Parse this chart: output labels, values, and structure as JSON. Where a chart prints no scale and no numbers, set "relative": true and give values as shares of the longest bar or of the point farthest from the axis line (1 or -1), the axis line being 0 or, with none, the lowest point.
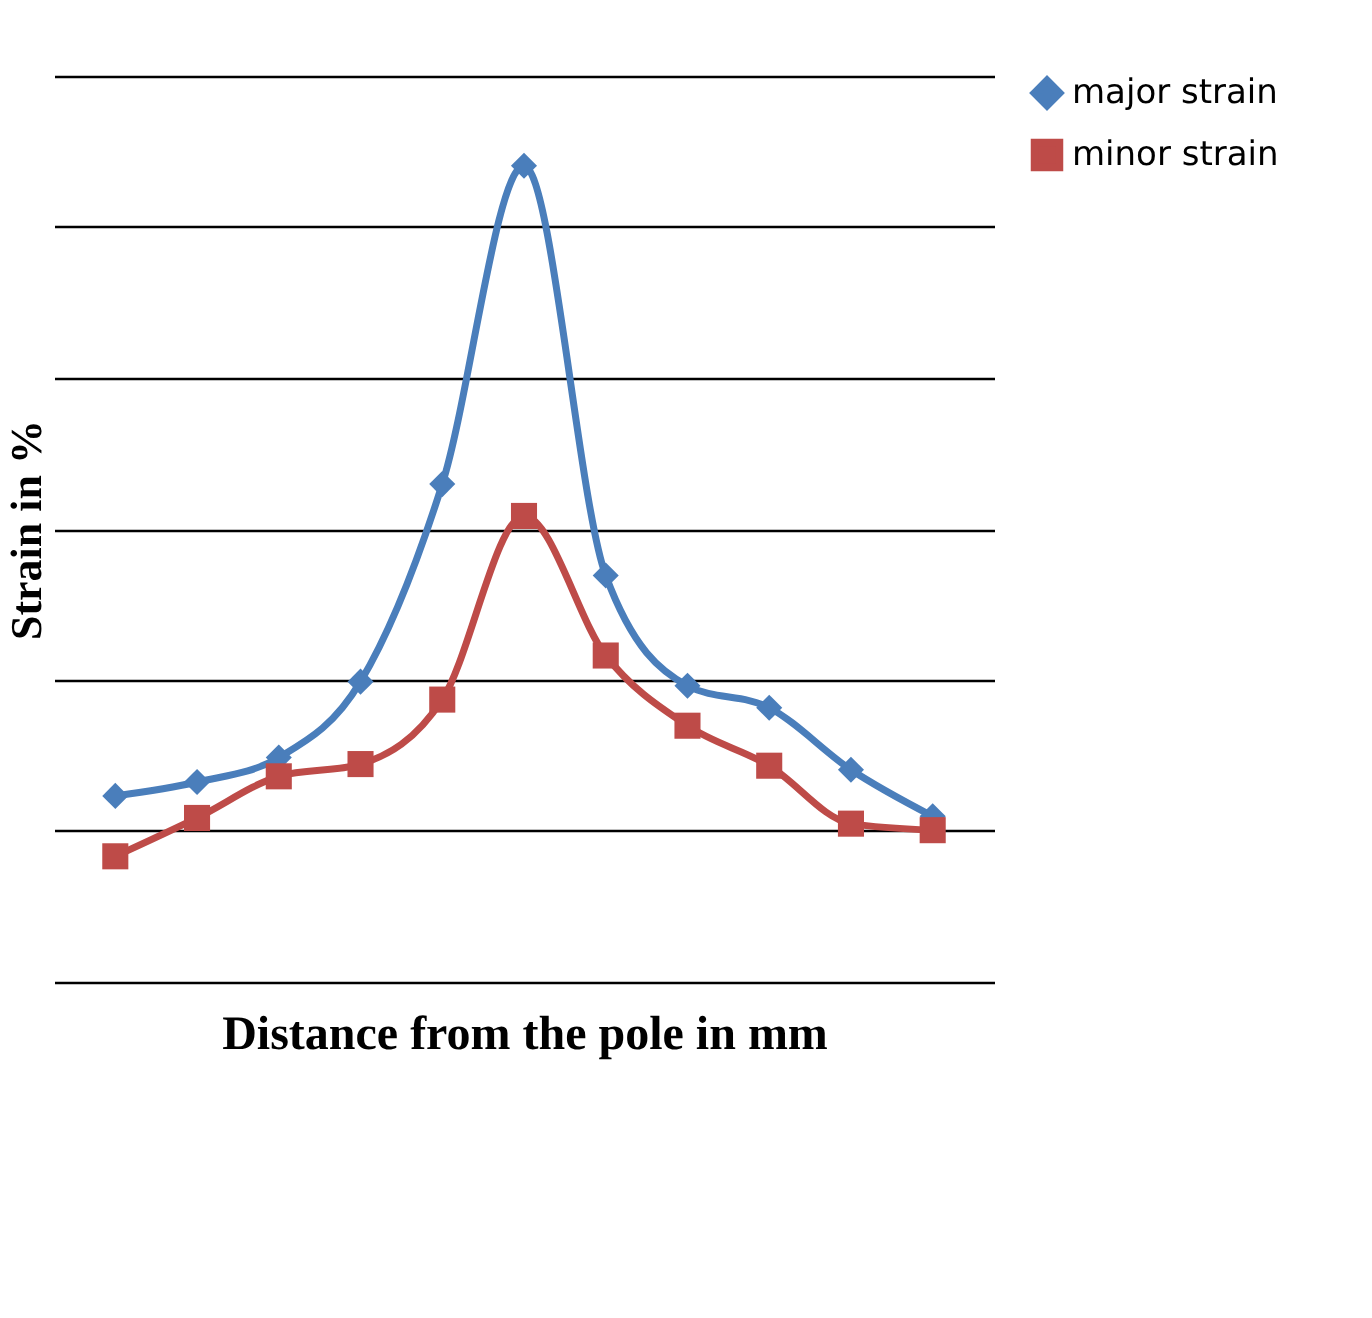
{
  "chart_data": {
    "type": "line",
    "xlabel": "Distance from the pole in mm",
    "ylabel": "Strain in %",
    "relative": true,
    "categories": [
      null,
      null,
      null,
      null,
      null,
      null,
      null,
      null,
      null,
      null,
      null
    ],
    "series": [
      {
        "name": "major strain",
        "color": "#4a7ebb",
        "marker": "diamond",
        "values": [
          0.228,
          0.245,
          0.275,
          0.368,
          0.61,
          1,
          0.498,
          0.363,
          0.336,
          0.26,
          0.203
        ]
      },
      {
        "name": "minor strain",
        "color": "#be4b48",
        "marker": "square",
        "values": [
          0.154,
          0.201,
          0.252,
          0.267,
          0.346,
          0.571,
          0.4,
          0.314,
          0.265,
          0.194,
          0.186
        ]
      }
    ],
    "grid": "y",
    "legend": "right",
    "line_style": "solid"
  }
}
